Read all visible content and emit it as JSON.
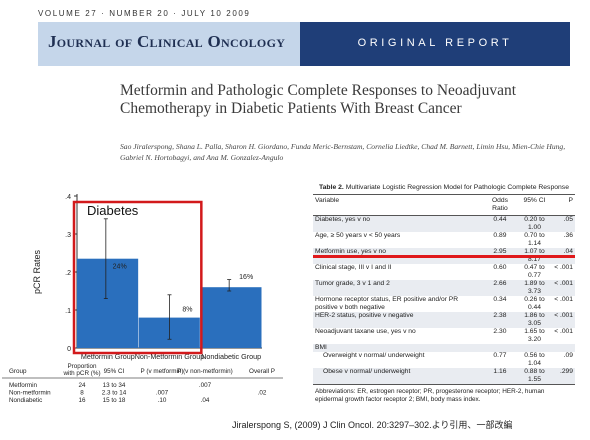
{
  "header": {
    "volume_line": "VOLUME 27 · NUMBER 20 · JULY 10 2009",
    "journal": "Journal of Clinical Oncology",
    "section": "ORIGINAL REPORT"
  },
  "article": {
    "title": "Metformin and Pathologic Complete Responses to Neoadjuvant Chemotherapy in Diabetic Patients With Breast Cancer",
    "authors": "Sao Jiralerspong, Shana L. Palla, Sharon H. Giordano, Funda Meric-Bernstam, Cornelia Liedtke, Chad M. Barnett, Limin Hsu, Mien-Chie Hung, Gabriel N. Hortobagyi, and Ana M. Gonzalez-Angulo"
  },
  "chart_data": {
    "type": "bar",
    "ylabel": "pCR Rates",
    "ylim": [
      0,
      0.4
    ],
    "yticks": [
      ".4",
      ".3",
      ".2",
      ".1",
      "0"
    ],
    "categories": [
      "Metformin Group",
      "Non-Metformin Group",
      "Nondiabetic Group"
    ],
    "values": [
      0.235,
      0.08,
      0.16
    ],
    "value_labels": [
      "24%",
      "8%",
      "16%"
    ],
    "error_low": [
      0.13,
      0.023,
      0.15
    ],
    "error_high": [
      0.34,
      0.14,
      0.18
    ],
    "annotation": "Diabetes",
    "bar_color": "#2a6fbd",
    "highlight_color": "#d2191b"
  },
  "mini_table": {
    "headers": [
      "Group",
      "Proportion with pCR (%)",
      "95% CI",
      "P (v metformin)",
      "P (v non-metformin)",
      "Overall P"
    ],
    "rows": [
      [
        "Metformin",
        "24",
        "13 to 34",
        "",
        ".007",
        ""
      ],
      [
        "Non-metformin",
        "8",
        "2.3 to 14",
        ".007",
        "",
        ".02"
      ],
      [
        "Nondiabetic",
        "16",
        "15 to 18",
        ".10",
        ".04",
        ""
      ]
    ]
  },
  "table2": {
    "label": "Table 2.",
    "title": "Multivariate Logistic Regression Model for Pathologic Complete Response",
    "columns": [
      "Variable",
      "Odds Ratio",
      "95% CI",
      "P"
    ],
    "rows": [
      [
        "Diabetes, yes v no",
        "0.44",
        "0.20 to 1.00",
        ".05"
      ],
      [
        "Age, ≥ 50 years v < 50 years",
        "0.89",
        "0.70 to 1.14",
        ".36"
      ],
      [
        "Metformin use, yes v no",
        "2.95",
        "1.07 to 8.17",
        ".04"
      ],
      [
        "Clinical stage, III v I and II",
        "0.60",
        "0.47 to 0.77",
        "< .001"
      ],
      [
        "Tumor grade, 3 v 1 and 2",
        "2.66",
        "1.89 to 3.73",
        "< .001"
      ],
      [
        "Hormone receptor status, ER positive and/or PR positive v both negative",
        "0.34",
        "0.26 to 0.44",
        "< .001"
      ],
      [
        "HER-2 status, positive v negative",
        "2.38",
        "1.86 to 3.05",
        "< .001"
      ],
      [
        "Neoadjuvant taxane use, yes v no",
        "2.30",
        "1.65 to 3.20",
        "< .001"
      ],
      [
        "BMI",
        "",
        "",
        ""
      ],
      [
        "Overweight v normal/ underweight",
        "0.77",
        "0.56 to 1.04",
        ".09"
      ],
      [
        "Obese v normal/ underweight",
        "1.16",
        "0.88 to 1.55",
        ".299"
      ]
    ],
    "footnote": "Abbreviations: ER, estrogen receptor; PR, progesterone receptor; HER-2, human epidermal growth factor receptor 2; BMI, body mass index."
  },
  "citation": "Jiralerspong S, (2009) J Clin Oncol. 20:3297–302.より引用、一部改編"
}
